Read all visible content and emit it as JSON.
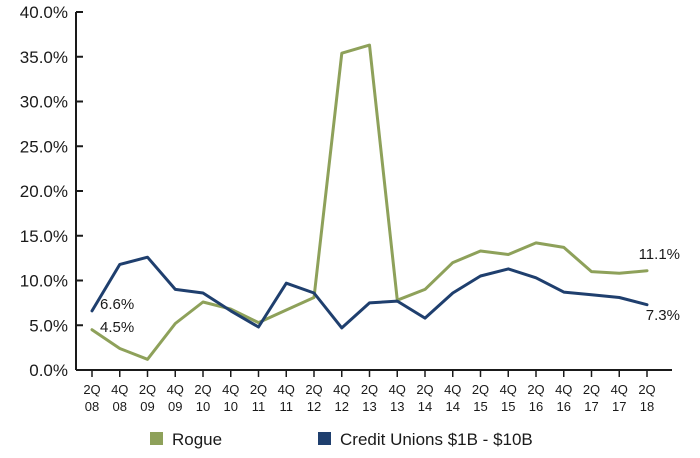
{
  "chart_data": {
    "type": "line",
    "y_axis": {
      "min": 0,
      "max": 40,
      "step": 5,
      "tick_labels": [
        "0.0%",
        "5.0%",
        "10.0%",
        "15.0%",
        "20.0%",
        "25.0%",
        "30.0%",
        "35.0%",
        "40.0%"
      ]
    },
    "categories": [
      {
        "q": "2Q",
        "y": "08"
      },
      {
        "q": "4Q",
        "y": "08"
      },
      {
        "q": "2Q",
        "y": "09"
      },
      {
        "q": "4Q",
        "y": "09"
      },
      {
        "q": "2Q",
        "y": "10"
      },
      {
        "q": "4Q",
        "y": "10"
      },
      {
        "q": "2Q",
        "y": "11"
      },
      {
        "q": "4Q",
        "y": "11"
      },
      {
        "q": "2Q",
        "y": "12"
      },
      {
        "q": "4Q",
        "y": "12"
      },
      {
        "q": "2Q",
        "y": "13"
      },
      {
        "q": "4Q",
        "y": "13"
      },
      {
        "q": "2Q",
        "y": "14"
      },
      {
        "q": "4Q",
        "y": "14"
      },
      {
        "q": "2Q",
        "y": "15"
      },
      {
        "q": "4Q",
        "y": "15"
      },
      {
        "q": "2Q",
        "y": "16"
      },
      {
        "q": "4Q",
        "y": "16"
      },
      {
        "q": "2Q",
        "y": "17"
      },
      {
        "q": "4Q",
        "y": "17"
      },
      {
        "q": "2Q",
        "y": "18"
      }
    ],
    "series": [
      {
        "name": "Rogue",
        "color": "#8ea15a",
        "values": [
          4.5,
          2.4,
          1.2,
          5.2,
          7.6,
          6.8,
          5.3,
          6.7,
          8.1,
          35.4,
          36.3,
          7.8,
          9.0,
          12.0,
          13.3,
          12.9,
          14.2,
          13.7,
          11.0,
          10.8,
          11.1
        ],
        "start_label": "4.5%",
        "end_label": "11.1%"
      },
      {
        "name": "Credit Unions $1B - $10B",
        "color": "#1f3f6e",
        "values": [
          6.6,
          11.8,
          12.6,
          9.0,
          8.6,
          6.6,
          4.8,
          9.7,
          8.6,
          4.7,
          7.5,
          7.7,
          5.8,
          8.6,
          10.5,
          11.3,
          10.3,
          8.7,
          8.4,
          8.1,
          7.3
        ],
        "start_label": "6.6%",
        "end_label": "7.3%"
      }
    ],
    "grid": false,
    "legend_position": "bottom"
  }
}
